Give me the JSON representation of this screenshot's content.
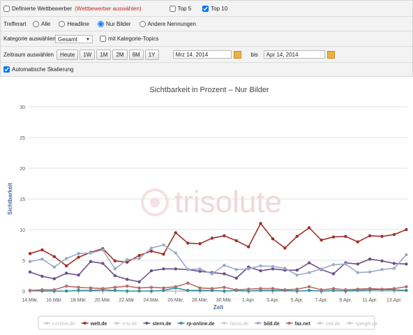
{
  "controls": {
    "competitors": {
      "label": "Definierte Wettbewerber",
      "link": "(Wettbewerber auswählen)",
      "checked": false
    },
    "top5": {
      "label": "Top 5",
      "checked": false
    },
    "top10": {
      "label": "Top 10",
      "checked": true
    },
    "hit_type": {
      "label": "Trefferart",
      "options": [
        "Alle",
        "Headline",
        "Nur Bilder",
        "Andere Nennungen"
      ],
      "selected": 2
    },
    "category": {
      "label": "Kategorie auswählen",
      "value": "Gesamt",
      "topics_label": "mit Kategorie-Topics",
      "topics_checked": false
    },
    "period": {
      "label": "Zeitraum auswählen",
      "buttons": [
        "Heute",
        "1W",
        "1M",
        "2M",
        "6M",
        "1Y"
      ],
      "from": "Mrz 14, 2014",
      "to_label": "bis",
      "to": "Apr 14, 2014"
    },
    "auto_scale": {
      "label": "Automatische Skalierung",
      "checked": true
    }
  },
  "chart_data": {
    "type": "line",
    "title": "Sichtbarkeit in Prozent – Nur Bilder",
    "x_label": "Zeit",
    "y_label": "Sichtbarkeit",
    "watermark": "trisolute",
    "categories": [
      "14.Mär.",
      null,
      "16.Mär.",
      null,
      "18.Mär.",
      null,
      "20.Mär.",
      null,
      "22.Mär.",
      null,
      "24.Mär.",
      null,
      "26.Mär.",
      null,
      "28.Mär.",
      null,
      "30.Mär.",
      null,
      "1.Apr.",
      null,
      "3.Apr.",
      null,
      "5.Apr.",
      null,
      "7.Apr.",
      null,
      "9.Apr.",
      null,
      "11.Apr.",
      null,
      "13.Apr.",
      null
    ],
    "ylim": [
      0,
      30
    ],
    "yticks": [
      0,
      5,
      10,
      15,
      20,
      25,
      30
    ],
    "grid": true,
    "series": [
      {
        "name": "t-online.de",
        "color": "#bbbbbb",
        "hidden": true,
        "values": [
          null,
          null,
          null,
          null,
          null,
          null,
          null,
          null,
          null,
          null,
          null,
          null,
          null,
          null,
          null,
          null,
          null,
          null,
          null,
          null,
          null,
          null,
          null,
          null,
          null,
          null,
          null,
          null,
          null,
          null,
          null,
          null
        ]
      },
      {
        "name": "welt.de",
        "color": "#a0302a",
        "hidden": false,
        "values": [
          6.1,
          6.7,
          5.6,
          4.1,
          5.5,
          6.3,
          6.9,
          4.9,
          4.7,
          5.8,
          6.5,
          6.0,
          9.5,
          7.8,
          7.7,
          8.6,
          9.0,
          8.2,
          7.2,
          11.0,
          8.5,
          7.0,
          8.9,
          10.3,
          8.3,
          8.8,
          8.9,
          8.0,
          9.0,
          8.9,
          9.2,
          10.0
        ]
      },
      {
        "name": "n-tv.de",
        "color": "#bbbbbb",
        "hidden": true,
        "values": [
          null,
          null,
          null,
          null,
          null,
          null,
          null,
          null,
          null,
          null,
          null,
          null,
          null,
          null,
          null,
          null,
          null,
          null,
          null,
          null,
          null,
          null,
          null,
          null,
          null,
          null,
          null,
          null,
          null,
          null,
          null,
          null
        ]
      },
      {
        "name": "stern.de",
        "color": "#6a4f8e",
        "hidden": false,
        "values": [
          3.1,
          2.4,
          2.0,
          2.9,
          2.6,
          4.8,
          4.5,
          2.5,
          1.9,
          1.5,
          3.3,
          3.6,
          3.6,
          3.5,
          3.2,
          3.0,
          2.8,
          2.1,
          3.9,
          3.3,
          3.6,
          3.4,
          3.4,
          4.6,
          3.5,
          2.8,
          4.6,
          4.4,
          5.2,
          4.9,
          4.5,
          4.4
        ]
      },
      {
        "name": "rp-online.de",
        "color": "#2e8f9e",
        "hidden": false,
        "values": [
          0.1,
          0.0,
          0.0,
          0.0,
          0.1,
          0.1,
          0.2,
          0.1,
          0.0,
          0.0,
          0.0,
          0.1,
          0.5,
          0.1,
          0.1,
          0.1,
          0.0,
          0.1,
          0.0,
          0.1,
          0.1,
          0.1,
          0.0,
          0.1,
          0.0,
          0.1,
          0.0,
          0.1,
          0.2,
          0.2,
          0.2,
          0.1
        ]
      },
      {
        "name": "focus.de",
        "color": "#bbbbbb",
        "hidden": true,
        "values": [
          null,
          null,
          null,
          null,
          null,
          null,
          null,
          null,
          null,
          null,
          null,
          null,
          null,
          null,
          null,
          null,
          null,
          null,
          null,
          null,
          null,
          null,
          null,
          null,
          null,
          null,
          null,
          null,
          null,
          null,
          null,
          null
        ]
      },
      {
        "name": "bild.de",
        "color": "#9aaac8",
        "hidden": false,
        "values": [
          4.8,
          5.2,
          3.9,
          5.3,
          6.1,
          6.2,
          6.7,
          3.6,
          5.1,
          5.3,
          7.0,
          7.5,
          6.2,
          3.5,
          3.6,
          2.8,
          4.2,
          3.5,
          3.6,
          4.1,
          4.0,
          3.7,
          2.6,
          3.0,
          3.6,
          4.3,
          4.4,
          3.0,
          3.1,
          3.5,
          3.7,
          5.9
        ]
      },
      {
        "name": "faz.net",
        "color": "#b86a6a",
        "hidden": false,
        "values": [
          0.1,
          0.2,
          0.2,
          0.8,
          0.6,
          0.5,
          0.4,
          0.6,
          0.8,
          0.5,
          0.6,
          0.5,
          0.7,
          1.3,
          0.5,
          0.4,
          0.6,
          0.2,
          0.3,
          0.4,
          0.4,
          0.2,
          0.3,
          0.7,
          0.2,
          0.4,
          0.2,
          0.3,
          0.4,
          0.3,
          0.4,
          0.7
        ]
      },
      {
        "name": "zeit.de",
        "color": "#bbbbbb",
        "hidden": true,
        "values": [
          null,
          null,
          null,
          null,
          null,
          null,
          null,
          null,
          null,
          null,
          null,
          null,
          null,
          null,
          null,
          null,
          null,
          null,
          null,
          null,
          null,
          null,
          null,
          null,
          null,
          null,
          null,
          null,
          null,
          null,
          null,
          null
        ]
      },
      {
        "name": "spiegel.de",
        "color": "#bbbbbb",
        "hidden": true,
        "values": [
          null,
          null,
          null,
          null,
          null,
          null,
          null,
          null,
          null,
          null,
          null,
          null,
          null,
          null,
          null,
          null,
          null,
          null,
          null,
          null,
          null,
          null,
          null,
          null,
          null,
          null,
          null,
          null,
          null,
          null,
          null,
          null
        ]
      }
    ]
  }
}
